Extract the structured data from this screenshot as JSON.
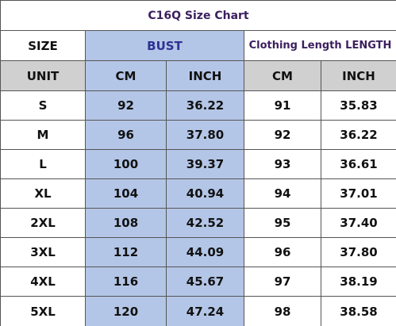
{
  "title": "C16Q Size Chart",
  "header": {
    "size": "SIZE",
    "bust": "BUST",
    "length": "Clothing Length LENGTH"
  },
  "units": [
    "UNIT",
    "CM",
    "INCH",
    "CM",
    "INCH"
  ],
  "rows": [
    [
      "S",
      "92",
      "36.22",
      "91",
      "35.83"
    ],
    [
      "M",
      "96",
      "37.80",
      "92",
      "36.22"
    ],
    [
      "L",
      "100",
      "39.37",
      "93",
      "36.61"
    ],
    [
      "XL",
      "104",
      "40.94",
      "94",
      "37.01"
    ],
    [
      "2XL",
      "108",
      "42.52",
      "95",
      "37.40"
    ],
    [
      "3XL",
      "112",
      "44.09",
      "96",
      "37.80"
    ],
    [
      "4XL",
      "116",
      "45.67",
      "97",
      "38.19"
    ],
    [
      "5XL",
      "120",
      "47.24",
      "98",
      "38.58"
    ]
  ]
}
